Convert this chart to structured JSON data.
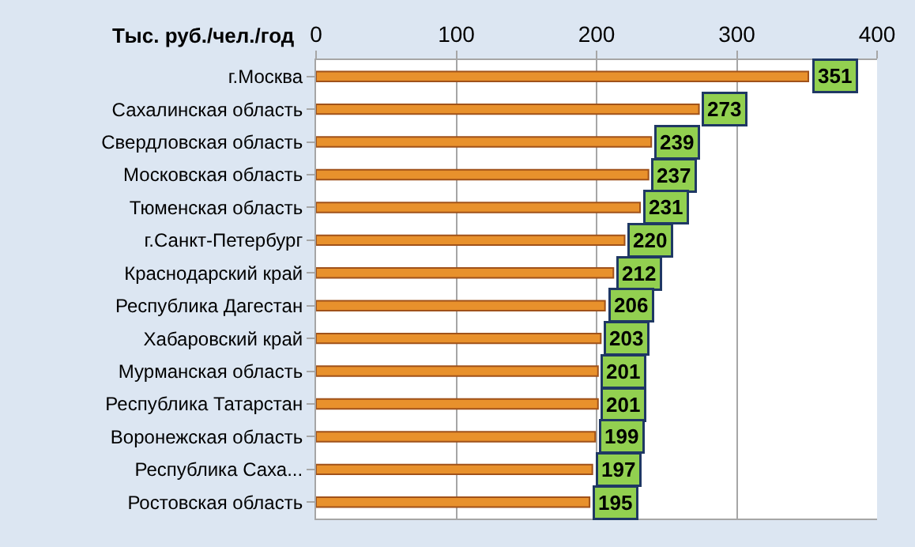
{
  "chart_data": {
    "type": "bar",
    "orientation": "horizontal",
    "xlabel": "Тыс. руб./чел./год",
    "categories": [
      "г.Москва",
      "Сахалинская область",
      "Свердловская область",
      "Московская область",
      "Тюменская область",
      "г.Санкт-Петербург",
      "Краснодарский край",
      "Республика Дагестан",
      "Хабаровский край",
      "Мурманская область",
      "Республика Татарстан",
      "Воронежская область",
      "Республика Саха...",
      "Ростовская область"
    ],
    "values": [
      351,
      273,
      239,
      237,
      231,
      220,
      212,
      206,
      203,
      201,
      201,
      199,
      197,
      195
    ],
    "color": "#e8912c",
    "xlim": [
      0,
      400
    ],
    "xticks": [
      0,
      100,
      200,
      300,
      400
    ],
    "grid": "x",
    "data_labels": true,
    "legend": false
  }
}
